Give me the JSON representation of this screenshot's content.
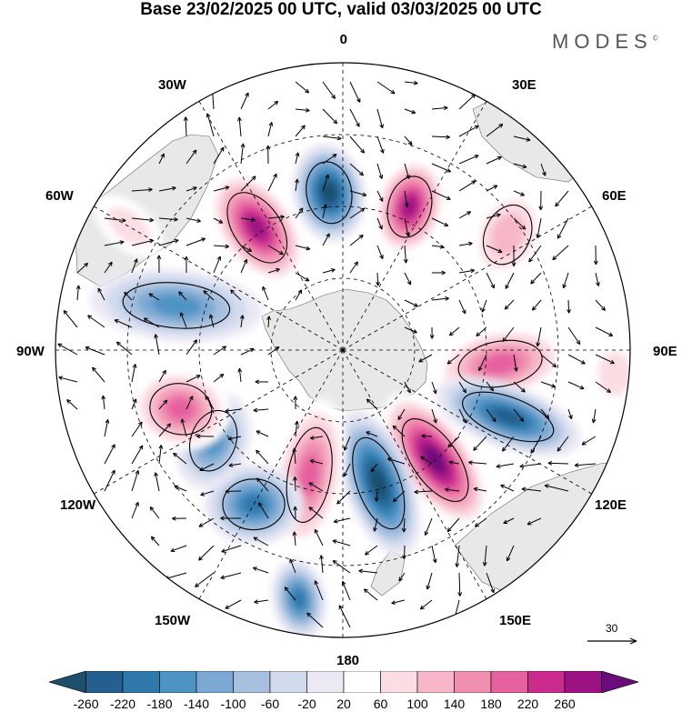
{
  "header": {
    "title": "Base 23/02/2025 00 UTC, valid 03/03/2025 00 UTC",
    "brand": "MODES",
    "brand_mark": "©"
  },
  "map": {
    "projection": "south-polar-stereographic",
    "longitude_labels": [
      "0",
      "30E",
      "60E",
      "90E",
      "120E",
      "150E",
      "180",
      "150W",
      "120W",
      "90W",
      "60W",
      "30W"
    ],
    "land_color": "#e8e8e8",
    "coast_color": "#666666",
    "grid_style": "dashed",
    "vector_color": "#000000"
  },
  "anomaly_field": {
    "wave_number": 6,
    "description_colors": {
      "negative_peak": "#1b4f72",
      "positive_peak": "#6a0d6f"
    }
  },
  "reference_vector": {
    "label": "30"
  },
  "colorbar": {
    "tick_labels": [
      "-260",
      "-220",
      "-180",
      "-140",
      "-100",
      "-60",
      "-20",
      "20",
      "60",
      "100",
      "140",
      "180",
      "220",
      "260"
    ],
    "colors": [
      "#1d4e6b",
      "#245f8f",
      "#2f78ac",
      "#4d93c4",
      "#7ba9d3",
      "#a8c0df",
      "#d2dbee",
      "#ebe9f4",
      "#ffffff",
      "#fbdde3",
      "#f7b7c8",
      "#f08fb0",
      "#e661a0",
      "#cc2b8e",
      "#9d1283",
      "#6b0c7c"
    ]
  }
}
